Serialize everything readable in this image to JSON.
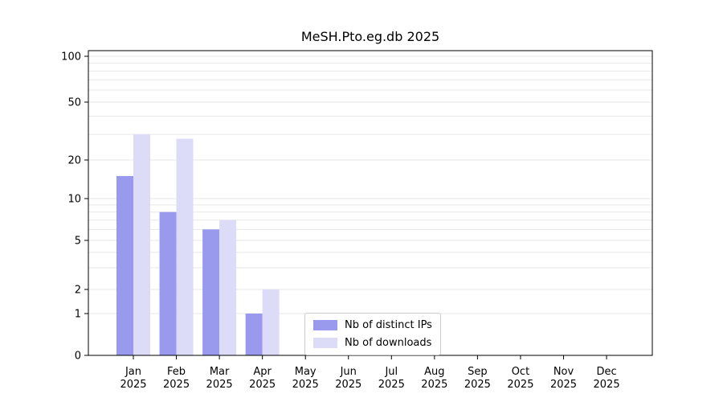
{
  "chart_data": {
    "type": "bar",
    "title": "MeSH.Pto.eg.db 2025",
    "year": "2025",
    "categories": [
      "Jan",
      "Feb",
      "Mar",
      "Apr",
      "May",
      "Jun",
      "Jul",
      "Aug",
      "Sep",
      "Oct",
      "Nov",
      "Dec"
    ],
    "series": [
      {
        "name": "Nb of distinct IPs",
        "color": "#9999ee",
        "values": [
          15,
          8,
          6,
          1,
          0,
          0,
          0,
          0,
          0,
          0,
          0,
          0
        ]
      },
      {
        "name": "Nb of downloads",
        "color": "#dcdcf8",
        "values": [
          30,
          28,
          7,
          2,
          0,
          0,
          0,
          0,
          0,
          0,
          0,
          0
        ]
      }
    ],
    "yticks": [
      0,
      1,
      2,
      5,
      10,
      20,
      50,
      100
    ],
    "yscale": "symlog",
    "ylim": [
      0,
      140
    ],
    "grid": true,
    "legend_position": "lower-center"
  }
}
